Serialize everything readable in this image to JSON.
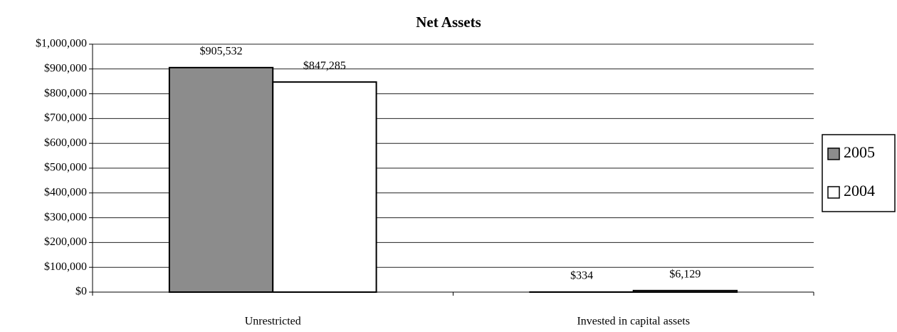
{
  "chart_data": {
    "type": "bar",
    "title": "Net Assets",
    "categories": [
      "Unrestricted",
      "Invested in capital assets"
    ],
    "series": [
      {
        "name": "2005",
        "color": "#8c8c8c",
        "values": [
          905532,
          334
        ],
        "value_labels": [
          "$905,532",
          "$334"
        ]
      },
      {
        "name": "2004",
        "color": "#ffffff",
        "values": [
          847285,
          6129
        ],
        "value_labels": [
          "$847,285",
          "$6,129"
        ]
      }
    ],
    "ylim": [
      0,
      1000000
    ],
    "yticks": [
      {
        "value": 0,
        "label": "$0"
      },
      {
        "value": 100000,
        "label": "$100,000"
      },
      {
        "value": 200000,
        "label": "$200,000"
      },
      {
        "value": 300000,
        "label": "$300,000"
      },
      {
        "value": 400000,
        "label": "$400,000"
      },
      {
        "value": 500000,
        "label": "$500,000"
      },
      {
        "value": 600000,
        "label": "$600,000"
      },
      {
        "value": 700000,
        "label": "$700,000"
      },
      {
        "value": 800000,
        "label": "$800,000"
      },
      {
        "value": 900000,
        "label": "$900,000"
      },
      {
        "value": 1000000,
        "label": "$1,000,000"
      }
    ],
    "grid": true,
    "legend": "right"
  }
}
